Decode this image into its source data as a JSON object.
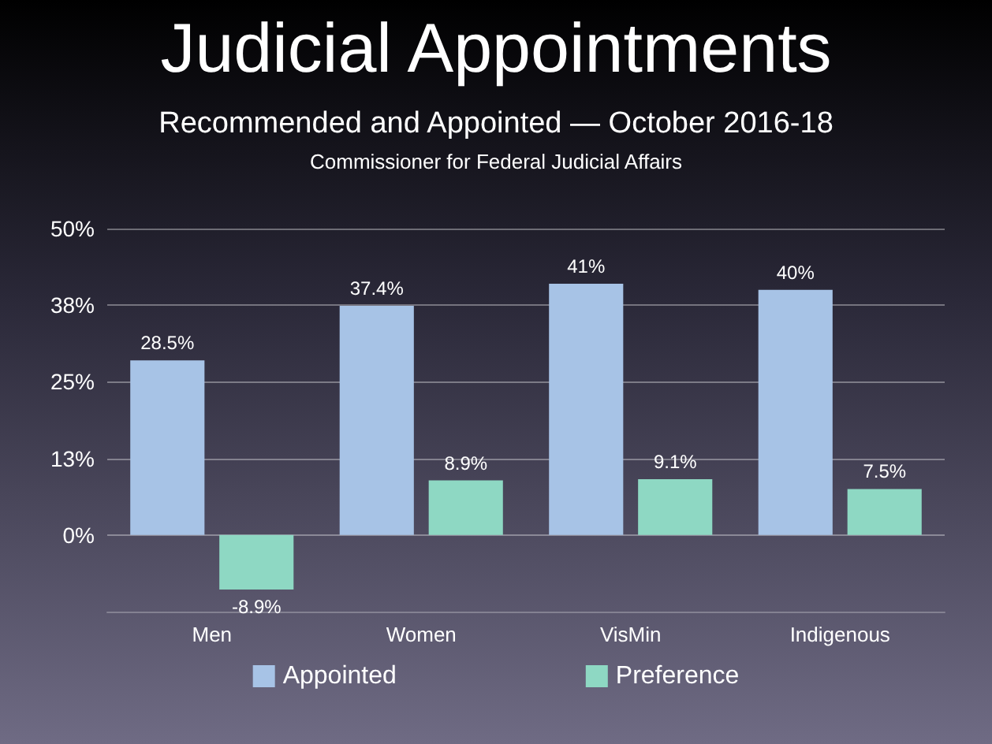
{
  "chart_data": {
    "type": "bar",
    "title": "Judicial Appointments",
    "subtitle": "Recommended and Appointed — October 2016-18",
    "annotations": [
      "Commissioner for Federal Judicial Affairs"
    ],
    "categories": [
      "Men",
      "Women",
      "VisMin",
      "Indigenous"
    ],
    "series": [
      {
        "name": "Appointed",
        "color": "#a7c3e6",
        "values": [
          28.5,
          37.4,
          41,
          40
        ],
        "value_labels": [
          "28.5%",
          "37.4%",
          "41%",
          "40%"
        ]
      },
      {
        "name": "Preference",
        "color": "#8ed8c3",
        "values": [
          -8.9,
          8.9,
          9.1,
          7.5
        ],
        "value_labels": [
          "-8.9%",
          "8.9%",
          "9.1%",
          "7.5%"
        ]
      }
    ],
    "ylim": [
      -12.5,
      50
    ],
    "yticks": [
      {
        "value": 0,
        "label": "0%"
      },
      {
        "value": 12.5,
        "label": "13%"
      },
      {
        "value": 25,
        "label": "25%"
      },
      {
        "value": 37.5,
        "label": "38%"
      },
      {
        "value": 50,
        "label": "50%"
      }
    ],
    "grid": "y",
    "legend": "bottom"
  }
}
